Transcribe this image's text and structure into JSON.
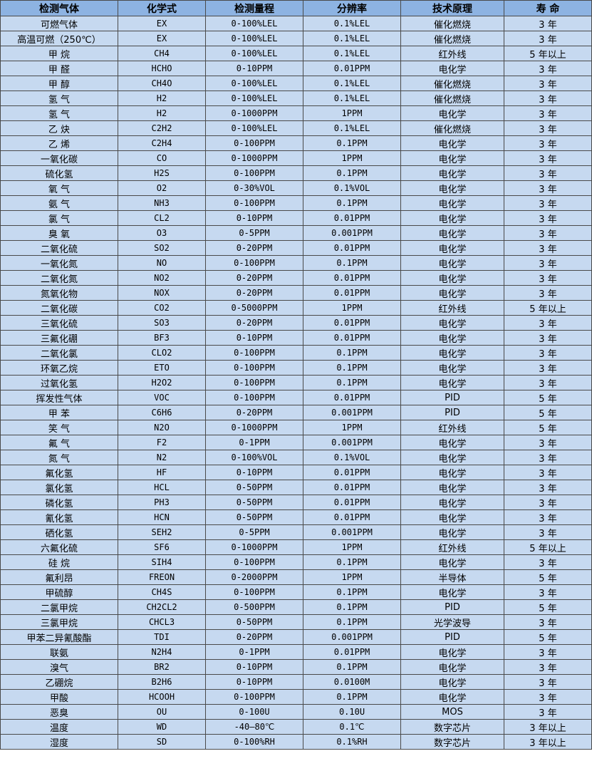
{
  "colors": {
    "header_bg": "#8db3e2",
    "row_bg": "#c6d9f0",
    "border": "#4a4a4a"
  },
  "table": {
    "headers": [
      "检测气体",
      "化学式",
      "检测量程",
      "分辨率",
      "技术原理",
      "寿 命"
    ],
    "rows": [
      [
        "可燃气体",
        "EX",
        "0-100%LEL",
        "0.1%LEL",
        "催化燃烧",
        "3 年"
      ],
      [
        "高温可燃（250℃）",
        "EX",
        "0-100%LEL",
        "0.1%LEL",
        "催化燃烧",
        "3 年"
      ],
      [
        "甲 烷",
        "CH4",
        "0-100%LEL",
        "0.1%LEL",
        "红外线",
        "5 年以上"
      ],
      [
        "甲 醛",
        "HCHO",
        "0-10PPM",
        "0.01PPM",
        "电化学",
        "3 年"
      ],
      [
        "甲 醇",
        "CH4O",
        "0-100%LEL",
        "0.1%LEL",
        "催化燃烧",
        "3 年"
      ],
      [
        "氢 气",
        "H2",
        "0-100%LEL",
        "0.1%LEL",
        "催化燃烧",
        "3 年"
      ],
      [
        "氢 气",
        "H2",
        "0-1000PPM",
        "1PPM",
        "电化学",
        "3 年"
      ],
      [
        "乙 炔",
        "C2H2",
        "0-100%LEL",
        "0.1%LEL",
        "催化燃烧",
        "3 年"
      ],
      [
        "乙 烯",
        "C2H4",
        "0-100PPM",
        "0.1PPM",
        "电化学",
        "3 年"
      ],
      [
        "一氧化碳",
        "CO",
        "0-1000PPM",
        "1PPM",
        "电化学",
        "3 年"
      ],
      [
        "硫化氢",
        "H2S",
        "0-100PPM",
        "0.1PPM",
        "电化学",
        "3 年"
      ],
      [
        "氧 气",
        "O2",
        "0-30%VOL",
        "0.1%VOL",
        "电化学",
        "3 年"
      ],
      [
        "氨 气",
        "NH3",
        "0-100PPM",
        "0.1PPM",
        "电化学",
        "3 年"
      ],
      [
        "氯 气",
        "CL2",
        "0-10PPM",
        "0.01PPM",
        "电化学",
        "3 年"
      ],
      [
        "臭 氧",
        "O3",
        "0-5PPM",
        "0.001PPM",
        "电化学",
        "3 年"
      ],
      [
        "二氧化硫",
        "SO2",
        "0-20PPM",
        "0.01PPM",
        "电化学",
        "3 年"
      ],
      [
        "一氧化氮",
        "NO",
        "0-100PPM",
        "0.1PPM",
        "电化学",
        "3 年"
      ],
      [
        "二氧化氮",
        "NO2",
        "0-20PPM",
        "0.01PPM",
        "电化学",
        "3 年"
      ],
      [
        "氮氧化物",
        "NOX",
        "0-20PPM",
        "0.01PPM",
        "电化学",
        "3 年"
      ],
      [
        "二氧化碳",
        "CO2",
        "0-5000PPM",
        "1PPM",
        "红外线",
        "5 年以上"
      ],
      [
        "三氧化硫",
        "SO3",
        "0-20PPM",
        "0.01PPM",
        "电化学",
        "3 年"
      ],
      [
        "三氟化硼",
        "BF3",
        "0-10PPM",
        "0.01PPM",
        "电化学",
        "3 年"
      ],
      [
        "二氧化氯",
        "CLO2",
        "0-100PPM",
        "0.1PPM",
        "电化学",
        "3 年"
      ],
      [
        "环氧乙烷",
        "ETO",
        "0-100PPM",
        "0.1PPM",
        "电化学",
        "3 年"
      ],
      [
        "过氧化氢",
        "H2O2",
        "0-100PPM",
        "0.1PPM",
        "电化学",
        "3 年"
      ],
      [
        "挥发性气体",
        "VOC",
        "0-100PPM",
        "0.01PPM",
        "PID",
        "5 年"
      ],
      [
        "甲 苯",
        "C6H6",
        "0-20PPM",
        "0.001PPM",
        "PID",
        "5 年"
      ],
      [
        "笑 气",
        "N2O",
        "0-1000PPM",
        "1PPM",
        "红外线",
        "5 年"
      ],
      [
        "氟 气",
        "F2",
        "0-1PPM",
        "0.001PPM",
        "电化学",
        "3 年"
      ],
      [
        "氮 气",
        "N2",
        "0-100%VOL",
        "0.1%VOL",
        "电化学",
        "3 年"
      ],
      [
        "氟化氢",
        "HF",
        "0-10PPM",
        "0.01PPM",
        "电化学",
        "3 年"
      ],
      [
        "氯化氢",
        "HCL",
        "0-50PPM",
        "0.01PPM",
        "电化学",
        "3 年"
      ],
      [
        "磷化氢",
        "PH3",
        "0-50PPM",
        "0.01PPM",
        "电化学",
        "3 年"
      ],
      [
        "氰化氢",
        "HCN",
        "0-50PPM",
        "0.01PPM",
        "电化学",
        "3 年"
      ],
      [
        "硒化氢",
        "SEH2",
        "0-5PPM",
        "0.001PPM",
        "电化学",
        "3 年"
      ],
      [
        "六氟化硫",
        "SF6",
        "0-1000PPM",
        "1PPM",
        "红外线",
        "5 年以上"
      ],
      [
        "硅 烷",
        "SIH4",
        "0-100PPM",
        "0.1PPM",
        "电化学",
        "3 年"
      ],
      [
        "氟利昂",
        "FREON",
        "0-2000PPM",
        "1PPM",
        "半导体",
        "5 年"
      ],
      [
        "甲硫醇",
        "CH4S",
        "0-100PPM",
        "0.1PPM",
        "电化学",
        "3 年"
      ],
      [
        "二氯甲烷",
        "CH2CL2",
        "0-500PPM",
        "0.1PPM",
        "PID",
        "5 年"
      ],
      [
        "三氯甲烷",
        "CHCL3",
        "0-50PPM",
        "0.1PPM",
        "光学波导",
        "3 年"
      ],
      [
        "甲苯二异氰酸酯",
        "TDI",
        "0-20PPM",
        "0.001PPM",
        "PID",
        "5 年"
      ],
      [
        "联氨",
        "N2H4",
        "0-1PPM",
        "0.01PPM",
        "电化学",
        "3 年"
      ],
      [
        "溴气",
        "BR2",
        "0-10PPM",
        "0.1PPM",
        "电化学",
        "3 年"
      ],
      [
        "乙硼烷",
        "B2H6",
        "0-10PPM",
        "0.0100M",
        "电化学",
        "3 年"
      ],
      [
        "甲酸",
        "HCOOH",
        "0-100PPM",
        "0.1PPM",
        "电化学",
        "3 年"
      ],
      [
        "恶臭",
        "OU",
        "0-100U",
        "0.10U",
        "MOS",
        "3 年"
      ],
      [
        "温度",
        "WD",
        "-40—80℃",
        "0.1℃",
        "数字芯片",
        "3 年以上"
      ],
      [
        "湿度",
        "SD",
        "0-100%RH",
        "0.1%RH",
        "数字芯片",
        "3 年以上"
      ]
    ]
  }
}
